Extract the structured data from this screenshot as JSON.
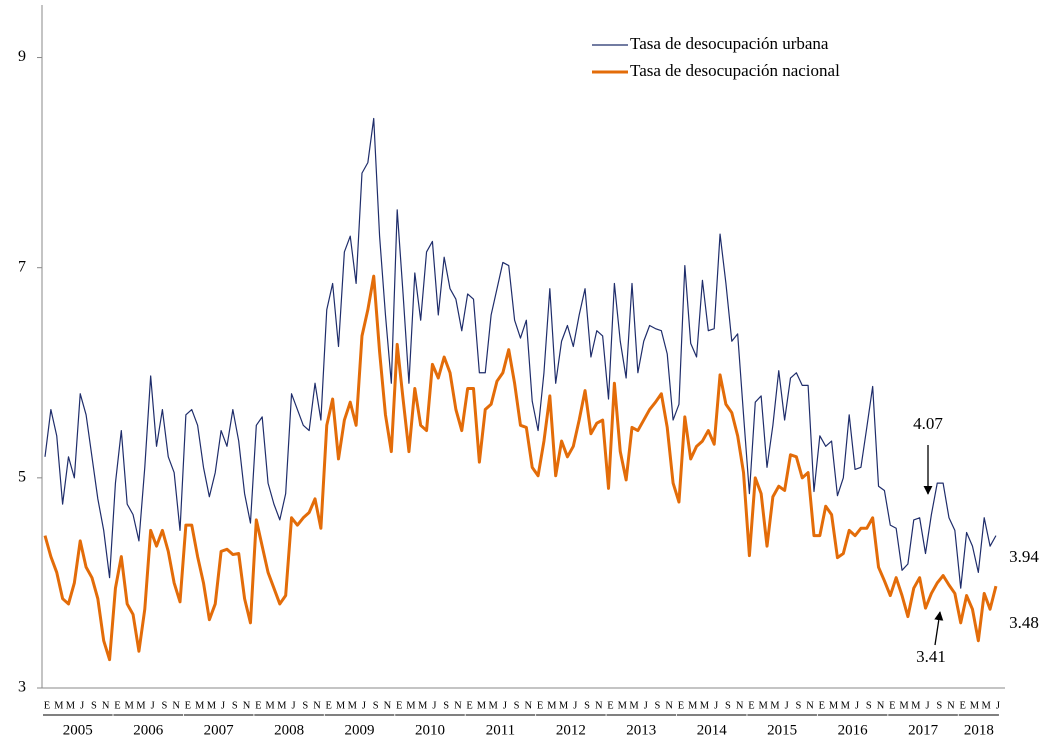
{
  "chart_data": {
    "type": "line",
    "categories": [
      "E",
      null,
      "M",
      null,
      "M",
      null,
      "J",
      null,
      "S",
      null,
      "N",
      null,
      "E",
      null,
      "M",
      null,
      "M",
      null,
      "J",
      null,
      "S",
      null,
      "N",
      null,
      "E",
      null,
      "M",
      null,
      "M",
      null,
      "J",
      null,
      "S",
      null,
      "N",
      null,
      "E",
      null,
      "M",
      null,
      "M",
      null,
      "J",
      null,
      "S",
      null,
      "N",
      null,
      "E",
      null,
      "M",
      null,
      "M",
      null,
      "J",
      null,
      "S",
      null,
      "N",
      null,
      "E",
      null,
      "M",
      null,
      "M",
      null,
      "J",
      null,
      "S",
      null,
      "N",
      null,
      "E",
      null,
      "M",
      null,
      "M",
      null,
      "J",
      null,
      "S",
      null,
      "N",
      null,
      "E",
      null,
      "M",
      null,
      "M",
      null,
      "J",
      null,
      "S",
      null,
      "N",
      null,
      "E",
      null,
      "M",
      null,
      "M",
      null,
      "J",
      null,
      "S",
      null,
      "N",
      null,
      "E",
      null,
      "M",
      null,
      "M",
      null,
      "J",
      null,
      "S",
      null,
      "N",
      null,
      "E",
      null,
      "M",
      null,
      "M",
      null,
      "J",
      null,
      "S",
      null,
      "N",
      null,
      "E",
      null,
      "M",
      null,
      "M",
      null,
      "J",
      null,
      "S",
      null,
      "N",
      null,
      "E",
      null,
      "M",
      null,
      "M",
      null,
      "J",
      null,
      "S",
      null,
      "N",
      null,
      "E",
      null,
      "M",
      null,
      "M",
      null,
      "J"
    ],
    "years": [
      "2005",
      "2006",
      "2007",
      "2008",
      "2009",
      "2010",
      "2011",
      "2012",
      "2013",
      "2014",
      "2015",
      "2016",
      "2017",
      "2018"
    ],
    "series": [
      {
        "name": "Tasa de desocupación urbana",
        "color": "#1f2d6b",
        "values": [
          5.2,
          5.65,
          5.4,
          4.75,
          5.2,
          5.0,
          5.8,
          5.6,
          5.2,
          4.8,
          4.5,
          4.05,
          4.95,
          5.45,
          4.75,
          4.65,
          4.4,
          5.1,
          5.97,
          5.3,
          5.65,
          5.2,
          5.05,
          4.5,
          5.6,
          5.65,
          5.5,
          5.1,
          4.82,
          5.05,
          5.45,
          5.3,
          5.65,
          5.35,
          4.85,
          4.57,
          5.5,
          5.58,
          4.95,
          4.75,
          4.6,
          4.85,
          5.8,
          5.65,
          5.5,
          5.45,
          5.9,
          5.55,
          6.6,
          6.85,
          6.25,
          7.15,
          7.3,
          6.85,
          7.9,
          8.0,
          8.42,
          7.3,
          6.55,
          5.9,
          7.55,
          6.75,
          5.9,
          6.95,
          6.5,
          7.15,
          7.25,
          6.55,
          7.1,
          6.8,
          6.7,
          6.4,
          6.75,
          6.7,
          6.0,
          6.0,
          6.55,
          6.8,
          7.05,
          7.02,
          6.5,
          6.33,
          6.5,
          5.73,
          5.45,
          6.0,
          6.8,
          5.9,
          6.3,
          6.45,
          6.25,
          6.55,
          6.8,
          6.15,
          6.4,
          6.35,
          5.75,
          6.85,
          6.3,
          5.95,
          6.85,
          6.0,
          6.3,
          6.45,
          6.42,
          6.4,
          6.18,
          5.55,
          5.7,
          7.02,
          6.28,
          6.15,
          6.88,
          6.4,
          6.42,
          7.32,
          6.85,
          6.3,
          6.37,
          5.6,
          4.85,
          5.72,
          5.78,
          5.1,
          5.5,
          6.02,
          5.55,
          5.95,
          6.0,
          5.88,
          5.88,
          4.87,
          5.4,
          5.3,
          5.35,
          4.83,
          5.0,
          5.6,
          5.08,
          5.1,
          5.48,
          5.87,
          4.92,
          4.88,
          4.55,
          4.52,
          4.12,
          4.18,
          4.6,
          4.62,
          4.28,
          4.65,
          4.95,
          4.95,
          4.62,
          4.5,
          3.95,
          4.48,
          4.35,
          4.1,
          4.62,
          4.35,
          4.45
        ]
      },
      {
        "name": "Tasa de desocupación nacional",
        "color": "#e36c09",
        "values": [
          4.45,
          4.25,
          4.1,
          3.85,
          3.8,
          4.0,
          4.4,
          4.15,
          4.05,
          3.85,
          3.45,
          3.27,
          3.95,
          4.25,
          3.8,
          3.7,
          3.35,
          3.75,
          4.5,
          4.35,
          4.5,
          4.3,
          4.0,
          3.82,
          4.55,
          4.55,
          4.25,
          4.0,
          3.65,
          3.8,
          4.3,
          4.32,
          4.27,
          4.28,
          3.85,
          3.62,
          4.6,
          4.35,
          4.1,
          3.95,
          3.8,
          3.88,
          4.62,
          4.55,
          4.62,
          4.67,
          4.8,
          4.52,
          5.5,
          5.75,
          5.18,
          5.55,
          5.72,
          5.5,
          6.35,
          6.6,
          6.92,
          6.2,
          5.6,
          5.25,
          6.27,
          5.75,
          5.25,
          5.85,
          5.5,
          5.45,
          6.08,
          5.95,
          6.15,
          6.0,
          5.65,
          5.45,
          5.85,
          5.85,
          5.15,
          5.65,
          5.7,
          5.92,
          6.0,
          6.22,
          5.9,
          5.5,
          5.48,
          5.1,
          5.02,
          5.35,
          5.78,
          5.02,
          5.35,
          5.2,
          5.3,
          5.55,
          5.83,
          5.42,
          5.52,
          5.55,
          4.9,
          5.9,
          5.25,
          4.98,
          5.48,
          5.45,
          5.55,
          5.65,
          5.72,
          5.8,
          5.48,
          4.95,
          4.77,
          5.58,
          5.18,
          5.3,
          5.35,
          5.45,
          5.32,
          5.98,
          5.7,
          5.62,
          5.4,
          5.05,
          4.26,
          5.0,
          4.85,
          4.35,
          4.82,
          4.92,
          4.88,
          5.22,
          5.2,
          5.0,
          5.05,
          4.45,
          4.45,
          4.73,
          4.65,
          4.24,
          4.28,
          4.5,
          4.45,
          4.52,
          4.52,
          4.62,
          4.15,
          4.02,
          3.88,
          4.05,
          3.88,
          3.68,
          3.95,
          4.05,
          3.76,
          3.9,
          4.0,
          4.07,
          3.98,
          3.9,
          3.62,
          3.88,
          3.75,
          3.45,
          3.9,
          3.75,
          3.97
        ]
      }
    ],
    "ylim": [
      3,
      9.5
    ],
    "yticks": [
      3,
      5,
      7,
      9
    ],
    "annotations": [
      "4.07",
      "3.41",
      "3.94",
      "3.48"
    ],
    "legend": "top"
  }
}
